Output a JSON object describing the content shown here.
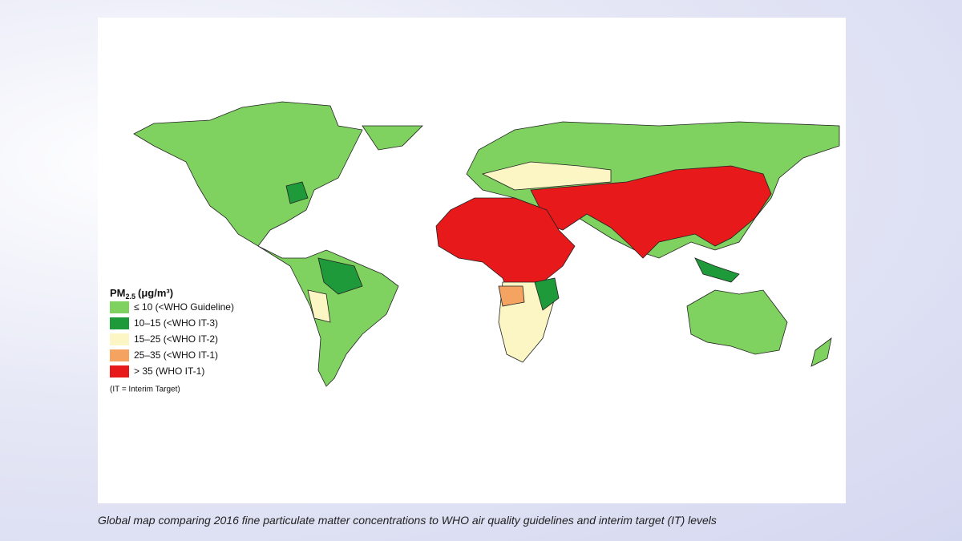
{
  "legend": {
    "title": {
      "base": "PM",
      "subscript": "2.5",
      "unit": "(μg/m³)"
    },
    "items": [
      {
        "label": "≤ 10 (<WHO Guideline)",
        "color": "#7fd160"
      },
      {
        "label": "10–15 (<WHO IT-3)",
        "color": "#1f9a3a"
      },
      {
        "label": "15–25 (<WHO IT-2)",
        "color": "#fbf6c4"
      },
      {
        "label": "25–35 (<WHO IT-1)",
        "color": "#f4a460"
      },
      {
        "label": "> 35 (WHO IT-1)",
        "color": "#e8191b"
      }
    ],
    "note": "(IT = Interim Target)"
  },
  "caption": "Global map comparing 2016 fine particulate matter concentrations to WHO air quality guidelines and interim target (IT) levels"
}
